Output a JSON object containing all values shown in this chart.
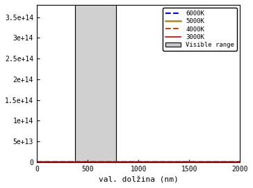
{
  "title": "",
  "xlabel": "val. dolžina (nm)",
  "ylabel": "",
  "xlim": [
    0,
    2000
  ],
  "ylim": [
    0,
    380000000000000.0
  ],
  "yticks": [
    0,
    50000000000000.0,
    100000000000000.0,
    150000000000000.0,
    200000000000000.0,
    250000000000000.0,
    300000000000000.0,
    350000000000000.0
  ],
  "ytick_labels": [
    "0",
    "5e+13",
    "1e+14",
    "1.5e+14",
    "2e+14",
    "2.5e+14",
    "3e+14",
    "3.5e+14"
  ],
  "xticks": [
    0,
    500,
    1000,
    1500,
    2000
  ],
  "temperatures": [
    6000,
    5000,
    4000,
    3000
  ],
  "colors": [
    "blue",
    "#b8860b",
    "#cc4400",
    "#cc0000"
  ],
  "linestyles": [
    "--",
    "-",
    "--",
    "-"
  ],
  "linewidths": [
    1.5,
    1.8,
    1.5,
    1.2
  ],
  "legend_labels": [
    "6000K",
    "5000K",
    "4000K",
    "3000K"
  ],
  "visible_range": [
    380,
    780
  ],
  "visible_color": "#c8c8c8",
  "visible_alpha": 0.85,
  "background_color": "white",
  "legend_box_label": "Visible range",
  "figsize": [
    3.64,
    2.7
  ],
  "dpi": 100
}
